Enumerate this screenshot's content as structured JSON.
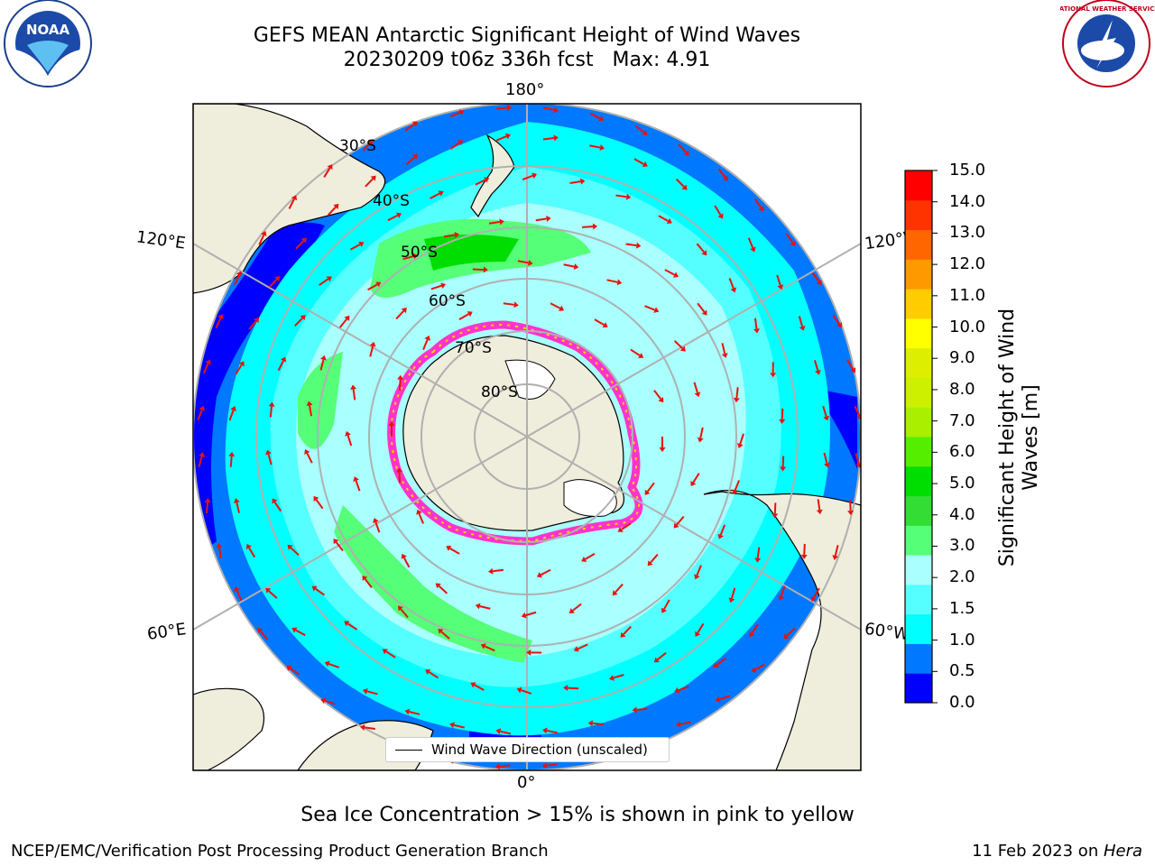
{
  "title": {
    "line1": "GEFS MEAN Antarctic Significant Height of Wind Waves",
    "line2": "20230209 t06z 336h fcst   Max: 4.91"
  },
  "map": {
    "projection": "south-polar-stereographic",
    "lon_labels": {
      "top": "180°",
      "bottom": "0°",
      "left_upper": "120°E",
      "left_lower": "60°E",
      "right_upper": "120°W",
      "right_lower": "60°W"
    },
    "lat_labels": [
      "30°S",
      "40°S",
      "50°S",
      "60°S",
      "70°S",
      "80°S"
    ],
    "legend_label": "Wind Wave Direction (unscaled)",
    "colors": {
      "land": "#efeddc",
      "ice": "#ffffff",
      "ice_edge": "#ff33cc",
      "arrow": "#e8120c",
      "grid": "#b0b0b0"
    }
  },
  "colorbar": {
    "title": "Significant Height of Wind Waves [m]",
    "ticks": [
      "15.0",
      "14.0",
      "13.0",
      "12.0",
      "11.0",
      "10.0",
      "9.0",
      "8.0",
      "7.0",
      "6.0",
      "5.0",
      "4.0",
      "3.0",
      "2.0",
      "1.5",
      "1.0",
      "0.5",
      "0.0"
    ],
    "colors_bottom_to_top": [
      "#0000ff",
      "#0078ff",
      "#00ffff",
      "#55ffff",
      "#aaffff",
      "#55ff77",
      "#33dd33",
      "#00dd00",
      "#55ee00",
      "#aaee00",
      "#ccf000",
      "#ddee00",
      "#ffff00",
      "#ffcc00",
      "#ff9900",
      "#ff6600",
      "#ff3300",
      "#ff0000"
    ]
  },
  "subtitle": "Sea Ice Concentration > 15% is shown in pink to yellow",
  "footer": {
    "left": "NCEP/EMC/Verification Post Processing Product Generation Branch",
    "right_date": "11 Feb 2023 on ",
    "right_host": "Hera"
  },
  "logos": {
    "left": "NOAA",
    "right": "NATIONAL WEATHER SERVICE"
  }
}
